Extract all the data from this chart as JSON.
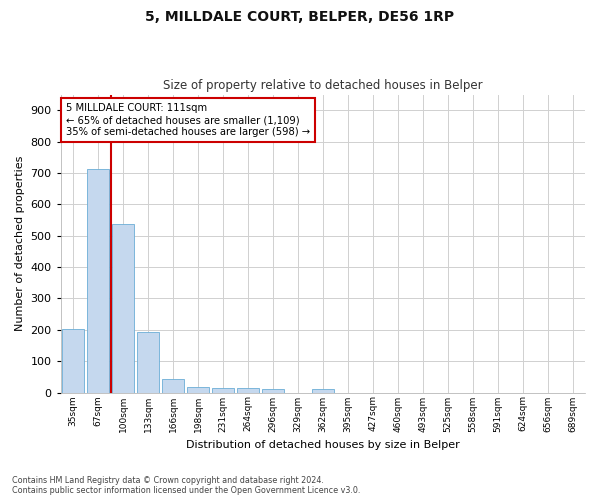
{
  "title_line1": "5, MILLDALE COURT, BELPER, DE56 1RP",
  "title_line2": "Size of property relative to detached houses in Belper",
  "xlabel": "Distribution of detached houses by size in Belper",
  "ylabel": "Number of detached properties",
  "categories": [
    "35sqm",
    "67sqm",
    "100sqm",
    "133sqm",
    "166sqm",
    "198sqm",
    "231sqm",
    "264sqm",
    "296sqm",
    "329sqm",
    "362sqm",
    "395sqm",
    "427sqm",
    "460sqm",
    "493sqm",
    "525sqm",
    "558sqm",
    "591sqm",
    "624sqm",
    "656sqm",
    "689sqm"
  ],
  "values": [
    203,
    714,
    537,
    193,
    42,
    18,
    14,
    13,
    10,
    0,
    10,
    0,
    0,
    0,
    0,
    0,
    0,
    0,
    0,
    0,
    0
  ],
  "bar_color": "#c5d8ee",
  "bar_edge_color": "#6baed6",
  "annotation_text_line1": "5 MILLDALE COURT: 111sqm",
  "annotation_text_line2": "← 65% of detached houses are smaller (1,109)",
  "annotation_text_line3": "35% of semi-detached houses are larger (598) →",
  "annotation_box_color": "#ffffff",
  "annotation_border_color": "#cc0000",
  "vline_color": "#cc0000",
  "vline_x": 2.0,
  "ylim": [
    0,
    950
  ],
  "yticks": [
    0,
    100,
    200,
    300,
    400,
    500,
    600,
    700,
    800,
    900
  ],
  "footnote_line1": "Contains HM Land Registry data © Crown copyright and database right 2024.",
  "footnote_line2": "Contains public sector information licensed under the Open Government Licence v3.0.",
  "bg_color": "#ffffff",
  "plot_bg_color": "#ffffff",
  "grid_color": "#d0d0d0"
}
